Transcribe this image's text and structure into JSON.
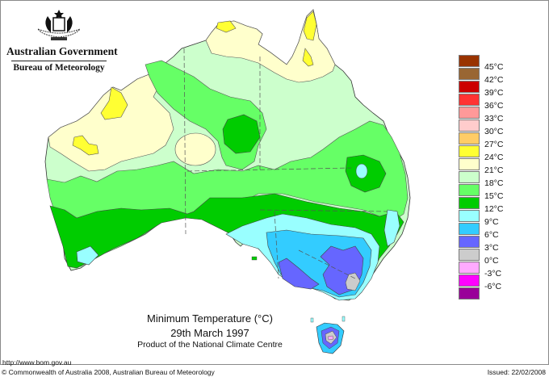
{
  "header": {
    "government": "Australian Government",
    "agency": "Bureau of Meteorology",
    "crest_icon": "coat-of-arms-icon"
  },
  "map": {
    "title": "Minimum Temperature (°C)",
    "date": "29th March 1997",
    "product": "Product of the National Climate Centre",
    "region": "Australia"
  },
  "legend": {
    "items": [
      {
        "label": "45°C",
        "color": "#993300"
      },
      {
        "label": "42°C",
        "color": "#996633"
      },
      {
        "label": "39°C",
        "color": "#cc0000"
      },
      {
        "label": "36°C",
        "color": "#ff3333"
      },
      {
        "label": "33°C",
        "color": "#ff9999"
      },
      {
        "label": "30°C",
        "color": "#ffcccc"
      },
      {
        "label": "27°C",
        "color": "#ffcc66"
      },
      {
        "label": "24°C",
        "color": "#ffff33"
      },
      {
        "label": "21°C",
        "color": "#ffffcc"
      },
      {
        "label": "18°C",
        "color": "#ccffcc"
      },
      {
        "label": "15°C",
        "color": "#66ff66"
      },
      {
        "label": "12°C",
        "color": "#00cc00"
      },
      {
        "label": "9°C",
        "color": "#99ffff"
      },
      {
        "label": "6°C",
        "color": "#33ccff"
      },
      {
        "label": "3°C",
        "color": "#6666ff"
      },
      {
        "label": "0°C",
        "color": "#cccccc"
      },
      {
        "label": "-3°C",
        "color": "#ffaaff"
      },
      {
        "label": "-6°C",
        "color": "#ff00ff"
      },
      {
        "label": "",
        "color": "#990099"
      }
    ]
  },
  "footer": {
    "url": "http://www.bom.gov.au",
    "copyright": "© Commonwealth of Australia 2008, Australian Bureau of Meteorology",
    "issued": "Issued: 22/02/2008"
  }
}
